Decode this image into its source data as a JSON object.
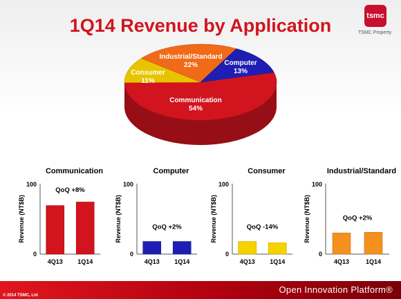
{
  "header": {
    "title": "1Q14 Revenue by Application",
    "logo_text": "tsmc",
    "property_label": "TSMC Property"
  },
  "footer": {
    "brand_text": "Open Innovation Platform®",
    "copyright": "© 2014 TSMC, Ltd"
  },
  "colors": {
    "communication": "#d2141e",
    "computer": "#1e1eb4",
    "consumer": "#f5d200",
    "industrial": "#f07814",
    "title": "#d2141e"
  },
  "chart_data": [
    {
      "type": "pie",
      "style": "3d",
      "slices": [
        {
          "label": "Communication",
          "value": 54,
          "value_label": "54%",
          "color": "#d2141e"
        },
        {
          "label": "Consumer",
          "value": 11,
          "value_label": "11%",
          "color": "#e8c400"
        },
        {
          "label": "Industrial/Standard",
          "value": 22,
          "value_label": "22%",
          "color": "#f06a18"
        },
        {
          "label": "Computer",
          "value": 13,
          "value_label": "13%",
          "color": "#1e1eb4"
        }
      ]
    },
    {
      "type": "bar",
      "title": "Communication",
      "ylabel": "Revenue (NT$B)",
      "categories": [
        "4Q13",
        "1Q14"
      ],
      "values": [
        69,
        74
      ],
      "ylim": [
        0,
        100
      ],
      "yticks": [
        "0",
        "100"
      ],
      "annotation": "QoQ +8%",
      "color": "#d2141e"
    },
    {
      "type": "bar",
      "title": "Computer",
      "ylabel": "Revenue (NT$B)",
      "categories": [
        "4Q13",
        "1Q14"
      ],
      "values": [
        18,
        18
      ],
      "ylim": [
        0,
        100
      ],
      "yticks": [
        "0",
        "100"
      ],
      "annotation": "QoQ +2%",
      "color": "#1e1eb4"
    },
    {
      "type": "bar",
      "title": "Consumer",
      "ylabel": "Revenue (NT$B)",
      "categories": [
        "4Q13",
        "1Q14"
      ],
      "values": [
        18,
        16
      ],
      "ylim": [
        0,
        100
      ],
      "yticks": [
        "0",
        "100"
      ],
      "annotation": "QoQ -14%",
      "color": "#f5d200"
    },
    {
      "type": "bar",
      "title": "Industrial/Standard",
      "ylabel": "Revenue (NT$B)",
      "categories": [
        "4Q13",
        "1Q14"
      ],
      "values": [
        30,
        31
      ],
      "ylim": [
        0,
        100
      ],
      "yticks": [
        "0",
        "100"
      ],
      "annotation": "QoQ +2%",
      "color": "#f4901e"
    }
  ]
}
